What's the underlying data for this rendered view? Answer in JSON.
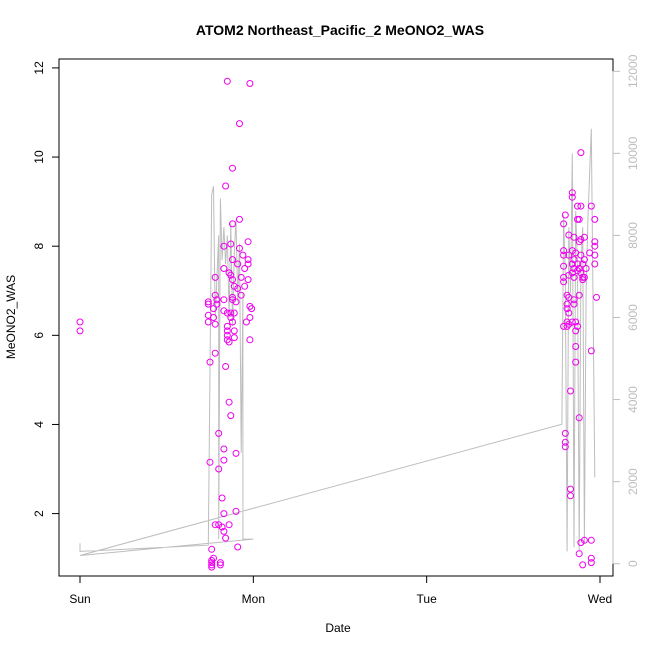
{
  "chart_data": {
    "type": "scatter",
    "title": "ATOM2 Northeast_Pacific_2 MeONO2_WAS",
    "xlabel": "Date",
    "ylabel": "MeONO2_WAS",
    "xlim": [
      0,
      3.0
    ],
    "ylim": [
      0.6,
      12.2
    ],
    "x_ticks": [
      {
        "value": 0,
        "label": "Sun"
      },
      {
        "value": 1,
        "label": "Mon"
      },
      {
        "value": 2,
        "label": "Tue"
      },
      {
        "value": 3,
        "label": "Wed"
      }
    ],
    "y_ticks": [
      2,
      4,
      6,
      8,
      10,
      12
    ],
    "y2lim": [
      -300,
      12300
    ],
    "y2_ticks": [
      0,
      2000,
      4000,
      6000,
      8000,
      10000,
      12000
    ],
    "grid": false,
    "colors": {
      "points": "#ee00ee",
      "line": "#bdbdbd",
      "right_axis": "#bdbdbd"
    },
    "series": [
      {
        "marker": "open-circle",
        "axis": "left",
        "points": [
          [
            0.0,
            6.3
          ],
          [
            0.0,
            6.1
          ],
          [
            0.74,
            6.75
          ],
          [
            0.74,
            6.7
          ],
          [
            0.74,
            6.45
          ],
          [
            0.74,
            6.3
          ],
          [
            0.75,
            5.4
          ],
          [
            0.75,
            3.15
          ],
          [
            0.76,
            1.2
          ],
          [
            0.76,
            0.95
          ],
          [
            0.76,
            0.9
          ],
          [
            0.76,
            0.85
          ],
          [
            0.76,
            0.8
          ],
          [
            0.77,
            1.0
          ],
          [
            0.77,
            6.6
          ],
          [
            0.77,
            6.4
          ],
          [
            0.78,
            7.3
          ],
          [
            0.78,
            6.9
          ],
          [
            0.78,
            6.25
          ],
          [
            0.78,
            5.6
          ],
          [
            0.78,
            1.75
          ],
          [
            0.79,
            6.8
          ],
          [
            0.79,
            6.7
          ],
          [
            0.8,
            3.8
          ],
          [
            0.8,
            3.0
          ],
          [
            0.8,
            1.75
          ],
          [
            0.81,
            0.9
          ],
          [
            0.81,
            0.85
          ],
          [
            0.82,
            2.35
          ],
          [
            0.82,
            1.7
          ],
          [
            0.83,
            8.0
          ],
          [
            0.83,
            7.5
          ],
          [
            0.83,
            6.8
          ],
          [
            0.83,
            6.55
          ],
          [
            0.83,
            3.45
          ],
          [
            0.83,
            3.2
          ],
          [
            0.83,
            2.0
          ],
          [
            0.83,
            1.6
          ],
          [
            0.84,
            1.45
          ],
          [
            0.84,
            9.35
          ],
          [
            0.84,
            5.3
          ],
          [
            0.85,
            6.5
          ],
          [
            0.85,
            6.2
          ],
          [
            0.85,
            6.1
          ],
          [
            0.85,
            6.0
          ],
          [
            0.85,
            5.9
          ],
          [
            0.86,
            7.4
          ],
          [
            0.86,
            5.85
          ],
          [
            0.86,
            4.5
          ],
          [
            0.86,
            1.75
          ],
          [
            0.87,
            8.05
          ],
          [
            0.87,
            7.35
          ],
          [
            0.87,
            6.5
          ],
          [
            0.87,
            6.4
          ],
          [
            0.87,
            4.2
          ],
          [
            0.88,
            9.75
          ],
          [
            0.88,
            8.5
          ],
          [
            0.88,
            7.7
          ],
          [
            0.88,
            7.25
          ],
          [
            0.88,
            6.85
          ],
          [
            0.88,
            6.8
          ],
          [
            0.88,
            6.3
          ],
          [
            0.89,
            7.1
          ],
          [
            0.89,
            6.5
          ],
          [
            0.89,
            6.1
          ],
          [
            0.89,
            5.95
          ],
          [
            0.9,
            6.75
          ],
          [
            0.9,
            3.35
          ],
          [
            0.9,
            2.05
          ],
          [
            0.91,
            1.25
          ],
          [
            0.91,
            7.6
          ],
          [
            0.91,
            7.05
          ],
          [
            0.92,
            10.75
          ],
          [
            0.92,
            8.6
          ],
          [
            0.92,
            7.95
          ],
          [
            0.93,
            6.9
          ],
          [
            0.93,
            7.3
          ],
          [
            0.94,
            7.8
          ],
          [
            0.95,
            7.5
          ],
          [
            0.95,
            7.1
          ],
          [
            0.96,
            6.3
          ],
          [
            0.97,
            7.6
          ],
          [
            0.98,
            6.4
          ],
          [
            0.97,
            8.1
          ],
          [
            0.97,
            7.7
          ],
          [
            0.97,
            7.25
          ],
          [
            0.98,
            11.65
          ],
          [
            0.98,
            6.65
          ],
          [
            0.99,
            6.6
          ],
          [
            0.98,
            5.9
          ],
          [
            0.85,
            11.7
          ],
          [
            2.79,
            8.5
          ],
          [
            2.79,
            7.9
          ],
          [
            2.79,
            7.8
          ],
          [
            2.79,
            7.55
          ],
          [
            2.79,
            7.3
          ],
          [
            2.79,
            7.2
          ],
          [
            2.79,
            6.2
          ],
          [
            2.8,
            3.8
          ],
          [
            2.8,
            3.6
          ],
          [
            2.8,
            3.5
          ],
          [
            2.8,
            8.7
          ],
          [
            2.81,
            6.9
          ],
          [
            2.81,
            6.7
          ],
          [
            2.81,
            6.6
          ],
          [
            2.81,
            6.3
          ],
          [
            2.81,
            6.2
          ],
          [
            2.82,
            7.35
          ],
          [
            2.82,
            8.25
          ],
          [
            2.82,
            7.8
          ],
          [
            2.82,
            6.85
          ],
          [
            2.82,
            6.5
          ],
          [
            2.82,
            6.25
          ],
          [
            2.83,
            2.55
          ],
          [
            2.83,
            2.4
          ],
          [
            2.83,
            4.75
          ],
          [
            2.84,
            9.1
          ],
          [
            2.84,
            9.2
          ],
          [
            2.84,
            7.9
          ],
          [
            2.84,
            7.6
          ],
          [
            2.84,
            7.4
          ],
          [
            2.84,
            6.3
          ],
          [
            2.85,
            8.2
          ],
          [
            2.85,
            7.7
          ],
          [
            2.85,
            7.5
          ],
          [
            2.85,
            7.3
          ],
          [
            2.85,
            6.8
          ],
          [
            2.85,
            6.7
          ],
          [
            2.86,
            5.75
          ],
          [
            2.86,
            5.4
          ],
          [
            2.86,
            6.3
          ],
          [
            2.86,
            6.1
          ],
          [
            2.86,
            7.85
          ],
          [
            2.87,
            8.9
          ],
          [
            2.87,
            8.6
          ],
          [
            2.87,
            7.6
          ],
          [
            2.87,
            7.45
          ],
          [
            2.87,
            6.2
          ],
          [
            2.88,
            8.6
          ],
          [
            2.88,
            8.1
          ],
          [
            2.88,
            7.5
          ],
          [
            2.88,
            6.9
          ],
          [
            2.88,
            4.15
          ],
          [
            2.88,
            1.1
          ],
          [
            2.89,
            1.35
          ],
          [
            2.89,
            10.1
          ],
          [
            2.89,
            8.9
          ],
          [
            2.89,
            8.15
          ],
          [
            2.89,
            7.8
          ],
          [
            2.89,
            7.4
          ],
          [
            2.9,
            7.6
          ],
          [
            2.9,
            7.3
          ],
          [
            2.9,
            7.25
          ],
          [
            2.9,
            0.85
          ],
          [
            2.91,
            1.4
          ],
          [
            2.91,
            8.2
          ],
          [
            2.91,
            7.7
          ],
          [
            2.91,
            7.3
          ],
          [
            2.92,
            7.5
          ],
          [
            2.94,
            7.85
          ],
          [
            2.95,
            8.9
          ],
          [
            2.95,
            5.65
          ],
          [
            2.95,
            1.4
          ],
          [
            2.95,
            1.0
          ],
          [
            2.95,
            0.9
          ],
          [
            2.97,
            8.6
          ],
          [
            2.97,
            8.1
          ],
          [
            2.97,
            8.0
          ],
          [
            2.97,
            7.8
          ],
          [
            2.97,
            7.6
          ],
          [
            2.98,
            6.85
          ]
        ]
      },
      {
        "type": "line",
        "axis": "right",
        "points": [
          [
            0.0,
            500
          ],
          [
            0.0,
            300
          ],
          [
            0.74,
            450
          ],
          [
            0.76,
            9000
          ],
          [
            0.77,
            9200
          ],
          [
            0.78,
            6000
          ],
          [
            0.8,
            8000
          ],
          [
            0.8,
            600
          ],
          [
            0.81,
            8900
          ],
          [
            0.82,
            7400
          ],
          [
            0.83,
            8200
          ],
          [
            0.84,
            7300
          ],
          [
            0.85,
            8000
          ],
          [
            0.86,
            6000
          ],
          [
            0.87,
            8300
          ],
          [
            0.88,
            5800
          ],
          [
            0.89,
            7600
          ],
          [
            0.9,
            8400
          ],
          [
            0.91,
            6400
          ],
          [
            0.92,
            7800
          ],
          [
            0.93,
            2700
          ],
          [
            0.94,
            6600
          ],
          [
            0.94,
            600
          ],
          [
            1.0,
            600
          ],
          [
            0.0,
            200
          ],
          [
            2.78,
            3400
          ],
          [
            2.79,
            8500
          ],
          [
            2.8,
            7000
          ],
          [
            2.81,
            300
          ],
          [
            2.82,
            8200
          ],
          [
            2.83,
            6600
          ],
          [
            2.84,
            10000
          ],
          [
            2.85,
            400
          ],
          [
            2.86,
            8600
          ],
          [
            2.87,
            7200
          ],
          [
            2.88,
            300
          ],
          [
            2.89,
            7200
          ],
          [
            2.9,
            8200
          ],
          [
            2.91,
            500
          ],
          [
            2.92,
            6600
          ],
          [
            2.93,
            8400
          ],
          [
            2.95,
            10600
          ],
          [
            2.97,
            2100
          ]
        ]
      }
    ]
  }
}
